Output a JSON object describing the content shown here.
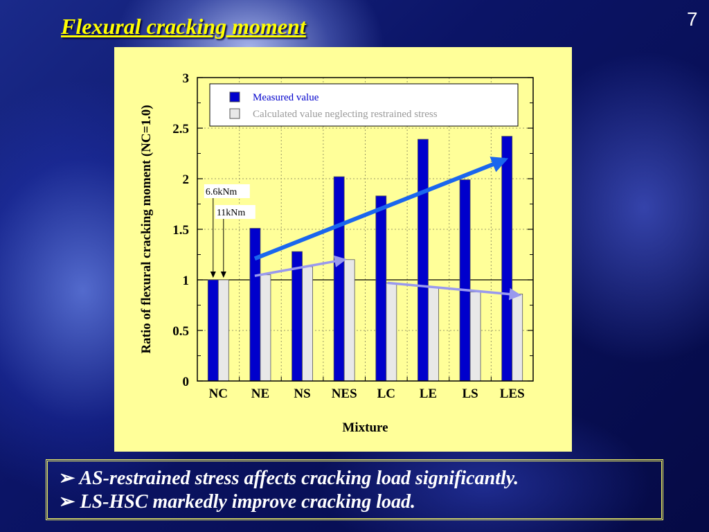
{
  "slide": {
    "title": "Flexural cracking moment",
    "page_number": "7"
  },
  "summary": [
    {
      "bullet": "➢",
      "text": "AS-restrained stress affects cracking load significantly."
    },
    {
      "bullet": "➢",
      "text": "LS-HSC markedly improve cracking load."
    }
  ],
  "chart_data": {
    "type": "bar",
    "xlabel": "Mixture",
    "ylabel": "Ratio of flexural cracking moment (NC=1.0)",
    "categories": [
      "NC",
      "NE",
      "NS",
      "NES",
      "LC",
      "LE",
      "LS",
      "LES"
    ],
    "ylim": [
      0,
      3
    ],
    "yticks": [
      "0",
      "0.5",
      "1",
      "1.5",
      "2",
      "2.5",
      "3"
    ],
    "grid": true,
    "reference_line": 1.0,
    "legend_position": "top-right",
    "series": [
      {
        "name": "Measured value",
        "color": "#0000cc",
        "values": [
          1.0,
          1.51,
          1.28,
          2.02,
          1.83,
          2.39,
          1.99,
          2.42
        ]
      },
      {
        "name": "Calculated value neglecting restrained stress",
        "color": "#e8e8e8",
        "values": [
          1.0,
          1.05,
          1.13,
          1.2,
          0.97,
          0.93,
          0.88,
          0.86
        ]
      }
    ],
    "annotations": [
      {
        "text": "6.6kNm",
        "category": "NC",
        "series": 0
      },
      {
        "text": "11kNm",
        "category": "NC",
        "series": 1
      }
    ],
    "trend_arrows": [
      {
        "color": "#1a66ee",
        "from": {
          "category": "NE",
          "value": 1.21
        },
        "to": {
          "category": "LES",
          "value": 2.19
        }
      },
      {
        "color": "#9999ee",
        "from": {
          "category": "NE",
          "value": 1.04
        },
        "to": {
          "category": "NES",
          "value": 1.2
        }
      },
      {
        "color": "#9999ee",
        "from": {
          "category": "LC",
          "value": 0.97
        },
        "to": {
          "category": "LES",
          "value": 0.85
        }
      }
    ]
  }
}
